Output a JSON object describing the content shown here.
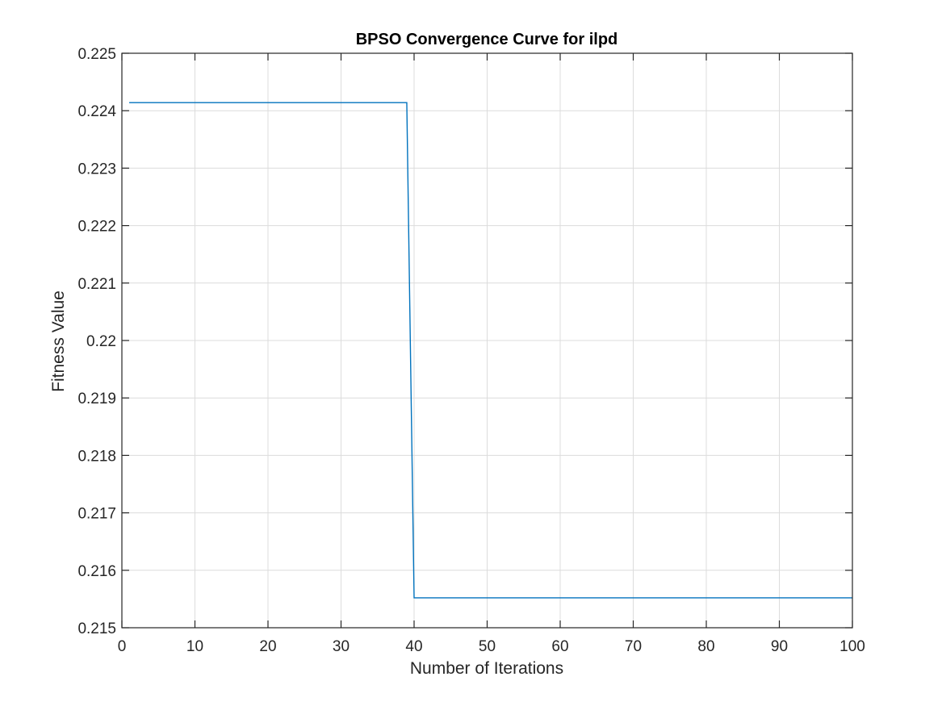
{
  "chart_data": {
    "type": "line",
    "title": "BPSO Convergence Curve for ilpd",
    "xlabel": "Number of Iterations",
    "ylabel": "Fitness Value",
    "xlim": [
      0,
      100
    ],
    "ylim": [
      0.215,
      0.225
    ],
    "xticks": [
      0,
      10,
      20,
      30,
      40,
      50,
      60,
      70,
      80,
      90,
      100
    ],
    "xtick_labels": [
      "0",
      "10",
      "20",
      "30",
      "40",
      "50",
      "60",
      "70",
      "80",
      "90",
      "100"
    ],
    "yticks": [
      0.215,
      0.216,
      0.217,
      0.218,
      0.219,
      0.22,
      0.221,
      0.222,
      0.223,
      0.224,
      0.225
    ],
    "ytick_labels": [
      "0.215",
      "0.216",
      "0.217",
      "0.218",
      "0.219",
      "0.22",
      "0.221",
      "0.222",
      "0.223",
      "0.224",
      "0.225"
    ],
    "grid": true,
    "series": [
      {
        "color": "#0072BD",
        "x": [
          1,
          39,
          40,
          100
        ],
        "y": [
          0.22414,
          0.22414,
          0.21552,
          0.21552
        ]
      }
    ]
  }
}
